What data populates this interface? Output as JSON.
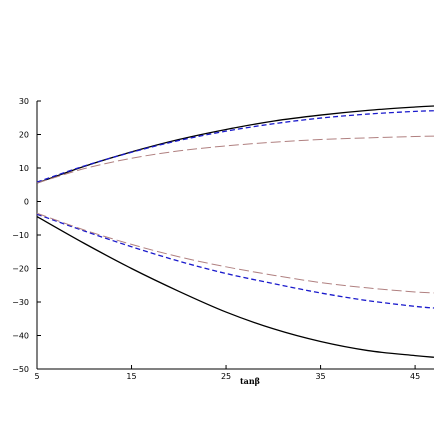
{
  "chart_data": {
    "type": "line",
    "title": "",
    "xlabel": "tanβ",
    "ylabel": "",
    "xlim": [
      5,
      47
    ],
    "ylim": [
      -50,
      30
    ],
    "xticks": [
      5,
      15,
      25,
      35,
      45
    ],
    "yticks": [
      30,
      20,
      10,
      0,
      -10,
      -20,
      -30,
      -40,
      -50
    ],
    "ytick_labels": [
      "30",
      "20",
      "10",
      "0",
      "−10",
      "−20",
      "−30",
      "−40",
      "−50"
    ],
    "grid": false,
    "legend": "none",
    "colors": {
      "solid": "#000000",
      "dashed": "#1a1acc",
      "longdash": "#b08080"
    },
    "x": [
      5,
      10,
      15,
      20,
      25,
      30,
      35,
      40,
      45,
      47
    ],
    "series": [
      {
        "style": "solid",
        "values": [
          5.5,
          10.5,
          14.8,
          18.5,
          21.5,
          24.0,
          25.8,
          27.2,
          28.2,
          28.5
        ]
      },
      {
        "style": "dashed",
        "values": [
          5.8,
          10.6,
          14.7,
          18.2,
          21.0,
          23.2,
          24.9,
          26.1,
          26.9,
          27.1
        ]
      },
      {
        "style": "longdash",
        "values": [
          5.5,
          9.8,
          12.9,
          15.1,
          16.6,
          17.7,
          18.5,
          19.0,
          19.4,
          19.5
        ]
      },
      {
        "style": "solid",
        "values": [
          -4.5,
          -12.5,
          -20.0,
          -26.8,
          -33.0,
          -38.0,
          -41.8,
          -44.5,
          -46.0,
          -46.5
        ]
      },
      {
        "style": "dashed",
        "values": [
          -3.8,
          -8.8,
          -13.5,
          -17.8,
          -21.5,
          -24.5,
          -27.3,
          -29.6,
          -31.3,
          -31.8
        ]
      },
      {
        "style": "longdash",
        "values": [
          -3.5,
          -8.5,
          -12.8,
          -16.5,
          -19.5,
          -22.0,
          -24.2,
          -25.8,
          -27.0,
          -27.3
        ]
      }
    ]
  }
}
